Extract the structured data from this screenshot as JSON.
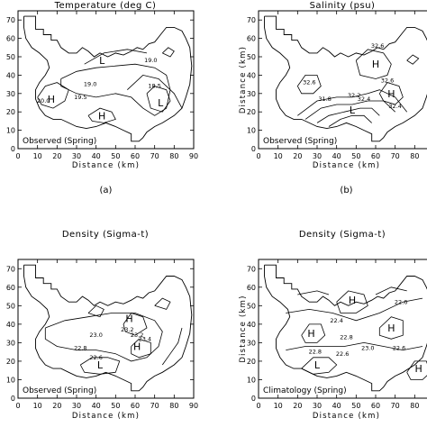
{
  "chart_data": [
    {
      "type": "contour",
      "title": "Temperature (deg C)",
      "xlabel": "Distance (km)",
      "ylabel": "",
      "xlim": [
        0,
        90
      ],
      "ylim": [
        0,
        75
      ],
      "xticks": [
        "0",
        "10",
        "20",
        "30",
        "40",
        "50",
        "60",
        "70",
        "80",
        "90"
      ],
      "yticks": [
        "0",
        "10",
        "20",
        "30",
        "40",
        "50",
        "60",
        "70"
      ],
      "box_label": "Observed (Spring)",
      "panel_label": "(a)",
      "hl_markers": [
        {
          "label": "L",
          "x": 43,
          "y": 48
        },
        {
          "label": "H",
          "x": 17,
          "y": 27
        },
        {
          "label": "L",
          "x": 73,
          "y": 25
        },
        {
          "label": "H",
          "x": 43,
          "y": 18
        }
      ],
      "contour_labels": [
        {
          "text": "19.0",
          "x": 68,
          "y": 47
        },
        {
          "text": "19.0",
          "x": 37,
          "y": 34
        },
        {
          "text": "18.5",
          "x": 70,
          "y": 33
        },
        {
          "text": "19.5",
          "x": 32,
          "y": 27
        },
        {
          "text": "20.0",
          "x": 13,
          "y": 25
        }
      ]
    },
    {
      "type": "contour",
      "title": "Salinity (psu)",
      "xlabel": "Distance (km)",
      "ylabel": "Distance (km)",
      "xlim": [
        0,
        90
      ],
      "ylim": [
        0,
        75
      ],
      "xticks": [
        "0",
        "10",
        "20",
        "30",
        "40",
        "50",
        "60",
        "70",
        "80"
      ],
      "yticks": [
        "0",
        "10",
        "20",
        "30",
        "40",
        "50",
        "60",
        "70"
      ],
      "box_label": "Observed (Spring)",
      "panel_label": "(b)",
      "hl_markers": [
        {
          "label": "H",
          "x": 60,
          "y": 46
        },
        {
          "label": "H",
          "x": 68,
          "y": 30
        },
        {
          "label": "L",
          "x": 48,
          "y": 21
        }
      ],
      "contour_labels": [
        {
          "text": "32.6",
          "x": 61,
          "y": 55
        },
        {
          "text": "32.6",
          "x": 26,
          "y": 35
        },
        {
          "text": "32.6",
          "x": 66,
          "y": 36
        },
        {
          "text": "32.2",
          "x": 49,
          "y": 28
        },
        {
          "text": "32.4",
          "x": 54,
          "y": 26
        },
        {
          "text": "31.8",
          "x": 34,
          "y": 26
        },
        {
          "text": "32.4",
          "x": 70,
          "y": 22
        }
      ]
    },
    {
      "type": "contour",
      "title": "Density (Sigma-t)",
      "xlabel": "Distance (km)",
      "ylabel": "",
      "xlim": [
        0,
        90
      ],
      "ylim": [
        0,
        75
      ],
      "xticks": [
        "0",
        "10",
        "20",
        "30",
        "40",
        "50",
        "60",
        "70",
        "80",
        "90"
      ],
      "yticks": [
        "0",
        "10",
        "20",
        "30",
        "40",
        "50",
        "60",
        "70"
      ],
      "box_label": "Observed (Spring)",
      "panel_label": "(c)",
      "hl_markers": [
        {
          "label": "H",
          "x": 57,
          "y": 43
        },
        {
          "label": "H",
          "x": 61,
          "y": 28
        },
        {
          "label": "L",
          "x": 42,
          "y": 18
        }
      ],
      "contour_labels": [
        {
          "text": "23.2",
          "x": 56,
          "y": 36
        },
        {
          "text": "23.0",
          "x": 40,
          "y": 33
        },
        {
          "text": "23.2",
          "x": 61,
          "y": 33
        },
        {
          "text": "23.4",
          "x": 65,
          "y": 31
        },
        {
          "text": "22.8",
          "x": 32,
          "y": 26
        },
        {
          "text": "22.6",
          "x": 40,
          "y": 21
        }
      ]
    },
    {
      "type": "contour",
      "title": "Density (Sigma-t)",
      "xlabel": "Distance (km)",
      "ylabel": "Distance (km)",
      "xlim": [
        0,
        90
      ],
      "ylim": [
        0,
        75
      ],
      "xticks": [
        "0",
        "10",
        "20",
        "30",
        "40",
        "50",
        "60",
        "70",
        "80"
      ],
      "yticks": [
        "0",
        "10",
        "20",
        "30",
        "40",
        "50",
        "60",
        "70"
      ],
      "box_label": "Climatology (Spring)",
      "panel_label": "(d)",
      "hl_markers": [
        {
          "label": "H",
          "x": 48,
          "y": 53
        },
        {
          "label": "H",
          "x": 27,
          "y": 35
        },
        {
          "label": "H",
          "x": 68,
          "y": 38
        },
        {
          "label": "L",
          "x": 30,
          "y": 18
        },
        {
          "label": "H",
          "x": 82,
          "y": 16
        }
      ],
      "contour_labels": [
        {
          "text": "22.6",
          "x": 73,
          "y": 51
        },
        {
          "text": "22.4",
          "x": 40,
          "y": 41
        },
        {
          "text": "22.8",
          "x": 45,
          "y": 32
        },
        {
          "text": "22.8",
          "x": 29,
          "y": 24
        },
        {
          "text": "22.6",
          "x": 43,
          "y": 23
        },
        {
          "text": "23.0",
          "x": 56,
          "y": 26
        },
        {
          "text": "22.6",
          "x": 72,
          "y": 26
        }
      ]
    }
  ]
}
